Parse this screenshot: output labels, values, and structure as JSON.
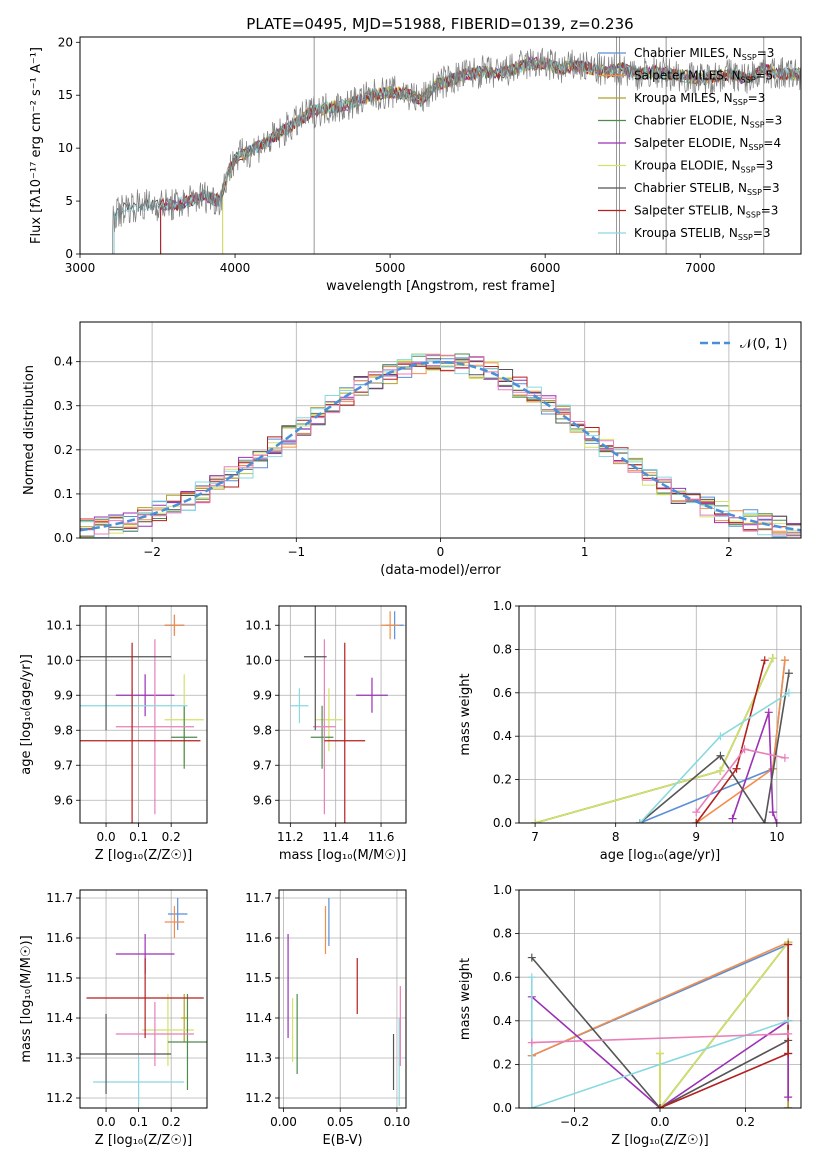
{
  "figure": {
    "title": "PLATE=0495, MJD=51988, FIBERID=0139, z=0.236"
  },
  "colors": {
    "chabrier_miles": "#5b8fd6",
    "salpeter_miles": "#f28e4c",
    "kroupa_miles": "#b5a024",
    "chabrier_elodie": "#4f8a4f",
    "salpeter_elodie": "#9b30b5",
    "kroupa_elodie": "#d2e26a",
    "chabrier_stelib": "#555555",
    "salpeter_stelib": "#b41f1f",
    "kroupa_stelib": "#8ad8e0",
    "pink": "#e87fb8",
    "data_spectrum": "#7f7f7f",
    "gaussian": "#4a90d9"
  },
  "chart_data": [
    {
      "id": "spectrum",
      "type": "line",
      "title": "PLATE=0495, MJD=51988, FIBERID=0139, z=0.236",
      "xlabel": "wavelength [Angstrom, rest frame]",
      "ylabel": "Flux [fλ10⁻¹⁷ erg cm⁻² s⁻¹ A⁻¹]",
      "xlim": [
        3000,
        7650
      ],
      "ylim": [
        0,
        20.5
      ],
      "xticks": [
        3000,
        4000,
        5000,
        6000,
        7000
      ],
      "yticks": [
        0,
        5,
        10,
        15,
        20
      ],
      "grid": false,
      "legend_placement": "right",
      "legend": [
        {
          "label": "Chabrier MILES, N",
          "sub": "SSP",
          "suffix": "=3",
          "color": "#5b8fd6"
        },
        {
          "label": "Salpeter MILES, N",
          "sub": "SSP",
          "suffix": "=5",
          "color": "#f28e4c"
        },
        {
          "label": "Kroupa MILES, N",
          "sub": "SSP",
          "suffix": "=3",
          "color": "#b5a024"
        },
        {
          "label": "Chabrier ELODIE, N",
          "sub": "SSP",
          "suffix": "=3",
          "color": "#4f8a4f"
        },
        {
          "label": "Salpeter ELODIE, N",
          "sub": "SSP",
          "suffix": "=4",
          "color": "#9b30b5"
        },
        {
          "label": "Kroupa ELODIE, N",
          "sub": "SSP",
          "suffix": "=3",
          "color": "#d2e26a"
        },
        {
          "label": "Chabrier STELIB, N",
          "sub": "SSP",
          "suffix": "=3",
          "color": "#555555"
        },
        {
          "label": "Salpeter STELIB, N",
          "sub": "SSP",
          "suffix": "=3",
          "color": "#b41f1f"
        },
        {
          "label": "Kroupa STELIB, N",
          "sub": "SSP",
          "suffix": "=3",
          "color": "#8ad8e0"
        }
      ],
      "data_envelope": {
        "wavelength": [
          3210,
          3300,
          3400,
          3500,
          3600,
          3700,
          3800,
          3900,
          3950,
          4000,
          4100,
          4200,
          4300,
          4400,
          4500,
          4600,
          4700,
          4800,
          4900,
          5000,
          5100,
          5200,
          5300,
          5400,
          5500,
          5600,
          5700,
          5800,
          5900,
          6000,
          6100,
          6200,
          6300,
          6400,
          6500,
          6600,
          6700,
          6800,
          6900,
          7000,
          7100,
          7200,
          7300,
          7400,
          7500,
          7650
        ],
        "flux": [
          3.5,
          4.5,
          4.6,
          4.7,
          4.6,
          5.0,
          5.5,
          5.0,
          7.5,
          9.0,
          9.8,
          10.5,
          11.5,
          12.5,
          13.5,
          13.8,
          14.0,
          14.5,
          15.0,
          15.3,
          15.2,
          14.5,
          16.0,
          16.5,
          17.0,
          17.2,
          17.0,
          17.5,
          18.0,
          18.0,
          17.5,
          17.8,
          17.5,
          17.2,
          17.5,
          17.0,
          17.2,
          17.0,
          16.8,
          16.5,
          16.8,
          17.0,
          16.5,
          17.5,
          17.0,
          17.0
        ]
      }
    },
    {
      "id": "residuals",
      "type": "histogram",
      "xlabel": "(data-model)/error",
      "ylabel": "Normed distribution",
      "xlim": [
        -2.5,
        2.5
      ],
      "ylim": [
        0,
        0.49
      ],
      "xticks": [
        -2,
        -1,
        0,
        1,
        2
      ],
      "yticks": [
        0.0,
        0.1,
        0.2,
        0.3,
        0.4
      ],
      "grid": true,
      "legend_placement": "top-right",
      "legend": [
        {
          "label": "𝒩(0, 1)",
          "style": "dashed"
        }
      ],
      "bin_width": 0.1
    },
    {
      "id": "age_vs_Z",
      "type": "errorbar",
      "xlabel": "Z [log₁₀(Z/Z☉)]",
      "ylabel": "age  [log₁₀(age/yr)]",
      "xlim": [
        -0.08,
        0.31
      ],
      "ylim": [
        9.535,
        10.155
      ],
      "xticks": [
        0.0,
        0.1,
        0.2
      ],
      "yticks": [
        9.6,
        9.7,
        9.8,
        9.9,
        10.0,
        10.1
      ],
      "points": [
        {
          "x": 0.21,
          "y": 10.1,
          "xerr": 0.03,
          "yerr": 0.03,
          "color": "#5b8fd6"
        },
        {
          "x": 0.21,
          "y": 10.1,
          "xerr": 0.03,
          "yerr": 0.03,
          "color": "#f28e4c"
        },
        {
          "x": 0.24,
          "y": 9.83,
          "xerr": 0.06,
          "yerr": 0.13,
          "color": "#d2e26a"
        },
        {
          "x": 0.24,
          "y": 9.78,
          "xerr": 0.04,
          "yerr": 0.09,
          "color": "#4f8a4f"
        },
        {
          "x": 0.12,
          "y": 9.9,
          "xerr": 0.09,
          "yerr": 0.06,
          "color": "#9b30b5"
        },
        {
          "x": 0.15,
          "y": 9.81,
          "xerr": 0.12,
          "yerr": 0.25,
          "color": "#e87fb8"
        },
        {
          "x": 0.08,
          "y": 9.87,
          "xerr": 0.17,
          "yerr": 0.05,
          "color": "#8ad8e0"
        },
        {
          "x": 0.0,
          "y": 10.01,
          "xerr": 0.2,
          "yerr": 0.21,
          "color": "#555555"
        },
        {
          "x": 0.08,
          "y": 9.77,
          "xerr": 0.21,
          "yerr": 0.28,
          "color": "#b41f1f"
        }
      ]
    },
    {
      "id": "age_vs_mass",
      "type": "errorbar",
      "xlabel": "mass [log₁₀(M/M☉)]",
      "xlim": [
        11.15,
        11.71
      ],
      "ylim": [
        9.535,
        10.155
      ],
      "xticks": [
        11.2,
        11.4,
        11.6
      ],
      "yticks": [
        9.6,
        9.7,
        9.8,
        9.9,
        10.0,
        10.1
      ],
      "points": [
        {
          "x": 11.66,
          "y": 10.1,
          "xerr": 0.04,
          "yerr": 0.04,
          "color": "#5b8fd6"
        },
        {
          "x": 11.64,
          "y": 10.1,
          "xerr": 0.04,
          "yerr": 0.04,
          "color": "#f28e4c"
        },
        {
          "x": 11.37,
          "y": 9.83,
          "xerr": 0.06,
          "yerr": 0.09,
          "color": "#d2e26a"
        },
        {
          "x": 11.34,
          "y": 9.78,
          "xerr": 0.05,
          "yerr": 0.09,
          "color": "#4f8a4f"
        },
        {
          "x": 11.56,
          "y": 9.9,
          "xerr": 0.07,
          "yerr": 0.05,
          "color": "#9b30b5"
        },
        {
          "x": 11.35,
          "y": 9.81,
          "xerr": 0.05,
          "yerr": 0.25,
          "color": "#e87fb8"
        },
        {
          "x": 11.24,
          "y": 9.87,
          "xerr": 0.04,
          "yerr": 0.05,
          "color": "#8ad8e0"
        },
        {
          "x": 11.31,
          "y": 10.01,
          "xerr": 0.05,
          "yerr": 0.21,
          "color": "#555555"
        },
        {
          "x": 11.44,
          "y": 9.77,
          "xerr": 0.09,
          "yerr": 0.28,
          "color": "#b41f1f"
        }
      ]
    },
    {
      "id": "weight_vs_age",
      "type": "line",
      "xlabel": "age  [log₁₀(age/yr)]",
      "ylabel": "mass weight",
      "xlim": [
        6.8,
        10.3
      ],
      "ylim": [
        0,
        1.0
      ],
      "xticks": [
        7,
        8,
        9,
        10
      ],
      "yticks": [
        0.0,
        0.2,
        0.4,
        0.6,
        0.8,
        1.0
      ],
      "grid": true,
      "series": [
        {
          "color": "#5b8fd6",
          "x": [
            8.3,
            9.95,
            10.1
          ],
          "y": [
            0.0,
            0.25,
            0.75
          ]
        },
        {
          "color": "#f28e4c",
          "x": [
            9.0,
            9.95,
            10.1
          ],
          "y": [
            0.0,
            0.25,
            0.75
          ]
        },
        {
          "color": "#b5a024",
          "x": [
            7.0,
            9.3,
            9.95
          ],
          "y": [
            0.0,
            0.24,
            0.76
          ]
        },
        {
          "color": "#4f8a4f",
          "x": [
            7.0,
            9.3,
            9.95
          ],
          "y": [
            0.0,
            0.24,
            0.76
          ]
        },
        {
          "color": "#9b30b5",
          "x": [
            9.45,
            9.9,
            9.95,
            10.0
          ],
          "y": [
            0.02,
            0.51,
            0.05,
            0.0
          ]
        },
        {
          "color": "#d2e26a",
          "x": [
            7.0,
            9.3,
            9.95
          ],
          "y": [
            0.0,
            0.24,
            0.76
          ]
        },
        {
          "color": "#555555",
          "x": [
            8.3,
            9.3,
            9.85,
            10.15
          ],
          "y": [
            0.0,
            0.31,
            0.0,
            0.69
          ]
        },
        {
          "color": "#b41f1f",
          "x": [
            9.0,
            9.5,
            9.85
          ],
          "y": [
            0.0,
            0.25,
            0.75
          ]
        },
        {
          "color": "#8ad8e0",
          "x": [
            8.3,
            9.3,
            10.15
          ],
          "y": [
            0.0,
            0.4,
            0.6
          ]
        },
        {
          "color": "#e87fb8",
          "x": [
            9.0,
            9.6,
            10.1
          ],
          "y": [
            0.05,
            0.34,
            0.3
          ]
        }
      ]
    },
    {
      "id": "mass_vs_Z",
      "type": "errorbar",
      "xlabel": "Z [log₁₀(Z/Z☉)]",
      "ylabel": "mass [log₁₀(M/M☉)]",
      "xlim": [
        -0.08,
        0.31
      ],
      "ylim": [
        11.175,
        11.72
      ],
      "xticks": [
        0.0,
        0.1,
        0.2
      ],
      "yticks": [
        11.2,
        11.3,
        11.4,
        11.5,
        11.6,
        11.7
      ],
      "points": [
        {
          "x": 0.22,
          "y": 11.66,
          "xerr": 0.03,
          "yerr": 0.04,
          "color": "#5b8fd6"
        },
        {
          "x": 0.21,
          "y": 11.64,
          "xerr": 0.03,
          "yerr": 0.04,
          "color": "#f28e4c"
        },
        {
          "x": 0.24,
          "y": 11.4,
          "xerr": 0.01,
          "yerr": 0.06,
          "color": "#b5a024"
        },
        {
          "x": 0.19,
          "y": 11.37,
          "xerr": 0.08,
          "yerr": 0.09,
          "color": "#d2e26a"
        },
        {
          "x": 0.25,
          "y": 11.34,
          "xerr": 0.06,
          "yerr": 0.12,
          "color": "#4f8a4f"
        },
        {
          "x": 0.12,
          "y": 11.56,
          "xerr": 0.09,
          "yerr": 0.05,
          "color": "#9b30b5"
        },
        {
          "x": 0.15,
          "y": 11.36,
          "xerr": 0.12,
          "yerr": 0.08,
          "color": "#e87fb8"
        },
        {
          "x": 0.1,
          "y": 11.24,
          "xerr": 0.14,
          "yerr": 0.06,
          "color": "#8ad8e0"
        },
        {
          "x": 0.0,
          "y": 11.31,
          "xerr": 0.2,
          "yerr": 0.1,
          "color": "#555555"
        },
        {
          "x": 0.12,
          "y": 11.45,
          "xerr": 0.18,
          "yerr": 0.1,
          "color": "#b41f1f"
        }
      ]
    },
    {
      "id": "mass_vs_ebv",
      "type": "errorbar",
      "xlabel": "E(B-V)",
      "xlim": [
        -0.004,
        0.108
      ],
      "ylim": [
        11.175,
        11.72
      ],
      "xticks": [
        0.0,
        0.05,
        0.1
      ],
      "xticklabels": [
        "0.00",
        "0.05",
        "0.10"
      ],
      "yticks": [
        11.2,
        11.3,
        11.4,
        11.5,
        11.6,
        11.7
      ],
      "points": [
        {
          "x": 0.04,
          "y": 11.64,
          "xerr": 0,
          "yerr": 0.06,
          "color": "#5b8fd6"
        },
        {
          "x": 0.037,
          "y": 11.62,
          "xerr": 0,
          "yerr": 0.06,
          "color": "#f28e4c"
        },
        {
          "x": 0.004,
          "y": 11.48,
          "xerr": 0,
          "yerr": 0.13,
          "color": "#9b30b5"
        },
        {
          "x": 0.008,
          "y": 11.37,
          "xerr": 0,
          "yerr": 0.08,
          "color": "#d2e26a"
        },
        {
          "x": 0.012,
          "y": 11.36,
          "xerr": 0,
          "yerr": 0.1,
          "color": "#4f8a4f"
        },
        {
          "x": 0.065,
          "y": 11.48,
          "xerr": 0,
          "yerr": 0.07,
          "color": "#b41f1f"
        },
        {
          "x": 0.097,
          "y": 11.29,
          "xerr": 0,
          "yerr": 0.07,
          "color": "#555555"
        },
        {
          "x": 0.102,
          "y": 11.29,
          "xerr": 0,
          "yerr": 0.11,
          "color": "#8ad8e0"
        },
        {
          "x": 0.103,
          "y": 11.38,
          "xerr": 0,
          "yerr": 0.1,
          "color": "#e87fb8"
        }
      ]
    },
    {
      "id": "weight_vs_Z",
      "type": "line",
      "xlabel": "Z [log₁₀(Z/Z☉)]",
      "ylabel": "mass weight",
      "xlim": [
        -0.33,
        0.33
      ],
      "ylim": [
        0,
        1.0
      ],
      "xticks": [
        -0.2,
        0.0,
        0.2
      ],
      "xticklabels": [
        "−0.2",
        "0.0",
        "0.2"
      ],
      "yticks": [
        0.0,
        0.2,
        0.4,
        0.6,
        0.8,
        1.0
      ],
      "grid": true,
      "series": [
        {
          "color": "#5b8fd6",
          "x": [
            -0.3,
            0.3,
            0.3
          ],
          "y": [
            0.24,
            0.75,
            0.0
          ]
        },
        {
          "color": "#f28e4c",
          "x": [
            -0.3,
            0.3,
            0.3
          ],
          "y": [
            0.24,
            0.76,
            0.0
          ]
        },
        {
          "color": "#b5a024",
          "x": [
            0.0,
            0.0,
            0.3,
            0.3
          ],
          "y": [
            0.25,
            0.0,
            0.76,
            0.0
          ]
        },
        {
          "color": "#4f8a4f",
          "x": [
            0.0,
            0.3,
            0.3
          ],
          "y": [
            0.0,
            0.76,
            0.25
          ]
        },
        {
          "color": "#9b30b5",
          "x": [
            -0.3,
            0.0,
            0.3,
            0.3
          ],
          "y": [
            0.51,
            0.0,
            0.4,
            0.05
          ]
        },
        {
          "color": "#d2e26a",
          "x": [
            0.0,
            0.0,
            0.3
          ],
          "y": [
            0.25,
            0.0,
            0.76
          ]
        },
        {
          "color": "#555555",
          "x": [
            -0.3,
            0.0,
            0.3
          ],
          "y": [
            0.69,
            0.0,
            0.31
          ]
        },
        {
          "color": "#b41f1f",
          "x": [
            0.0,
            0.3,
            0.3
          ],
          "y": [
            0.0,
            0.25,
            0.75
          ]
        },
        {
          "color": "#8ad8e0",
          "x": [
            -0.3,
            -0.3,
            0.3
          ],
          "y": [
            0.6,
            0.0,
            0.4
          ]
        },
        {
          "color": "#e87fb8",
          "x": [
            -0.3,
            0.3
          ],
          "y": [
            0.3,
            0.34
          ]
        }
      ]
    }
  ]
}
